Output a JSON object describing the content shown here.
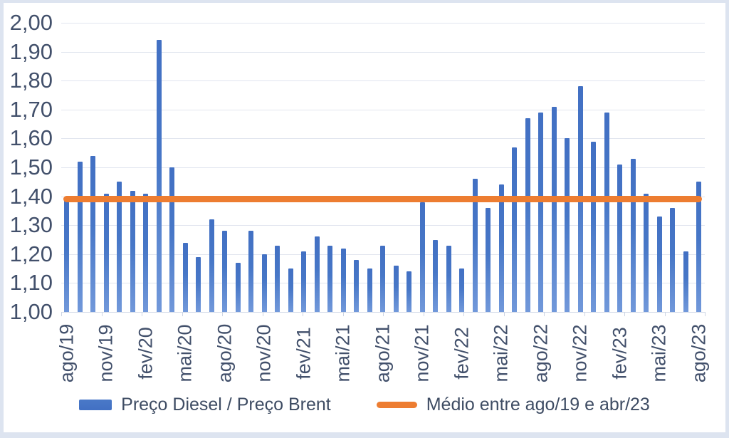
{
  "chart_data": {
    "type": "bar",
    "title": "",
    "xlabel": "",
    "ylabel": "",
    "ylim": [
      1.0,
      2.0
    ],
    "ytick_step": 0.1,
    "ytick_labels": [
      "2,00",
      "1,90",
      "1,80",
      "1,70",
      "1,60",
      "1,50",
      "1,40",
      "1,30",
      "1,20",
      "1,10",
      "1,00"
    ],
    "xtick_labels": [
      "ago/19",
      "nov/19",
      "fev/20",
      "mai/20",
      "ago/20",
      "nov/20",
      "fev/21",
      "mai/21",
      "ago/21",
      "nov/21",
      "fev/22",
      "mai/22",
      "ago/22",
      "nov/22",
      "fev/23",
      "mai/23",
      "ago/23"
    ],
    "xtick_every_n": 3,
    "grid": "horizontal",
    "legend_position": "bottom",
    "categories": [
      "ago/19",
      "set/19",
      "out/19",
      "nov/19",
      "dez/19",
      "jan/20",
      "fev/20",
      "mar/20",
      "abr/20",
      "mai/20",
      "jun/20",
      "jul/20",
      "ago/20",
      "set/20",
      "out/20",
      "nov/20",
      "dez/20",
      "jan/21",
      "fev/21",
      "mar/21",
      "abr/21",
      "mai/21",
      "jun/21",
      "jul/21",
      "ago/21",
      "set/21",
      "out/21",
      "nov/21",
      "dez/21",
      "jan/22",
      "fev/22",
      "mar/22",
      "abr/22",
      "mai/22",
      "jun/22",
      "jul/22",
      "ago/22",
      "set/22",
      "out/22",
      "nov/22",
      "dez/22",
      "jan/23",
      "fev/23",
      "mar/23",
      "abr/23",
      "mai/23",
      "jun/23",
      "jul/23",
      "ago/23"
    ],
    "series": [
      {
        "name": "Preço Diesel / Preço Brent",
        "type": "bar",
        "color": "#4472C4",
        "values": [
          1.39,
          1.52,
          1.54,
          1.41,
          1.45,
          1.42,
          1.41,
          1.94,
          1.5,
          1.24,
          1.19,
          1.32,
          1.28,
          1.17,
          1.28,
          1.2,
          1.23,
          1.15,
          1.21,
          1.26,
          1.23,
          1.22,
          1.18,
          1.15,
          1.23,
          1.16,
          1.14,
          1.38,
          1.25,
          1.23,
          1.15,
          1.46,
          1.36,
          1.44,
          1.57,
          1.67,
          1.69,
          1.71,
          1.6,
          1.78,
          1.59,
          1.69,
          1.51,
          1.53,
          1.41,
          1.33,
          1.36,
          1.21,
          1.45
        ]
      },
      {
        "name": "Médio entre ago/19 e abr/23",
        "type": "horizontal-line",
        "color": "#ED7D31",
        "value": 1.39
      }
    ]
  },
  "legend": {
    "bar_label": "Preço Diesel / Preço Brent",
    "line_label": "Médio entre ago/19 e abr/23"
  },
  "colors": {
    "bar": "#4472C4",
    "average_line": "#ED7D31",
    "axis_text": "#44546A",
    "gridline": "#E1E5EF",
    "frame": "#DDE4F0"
  }
}
